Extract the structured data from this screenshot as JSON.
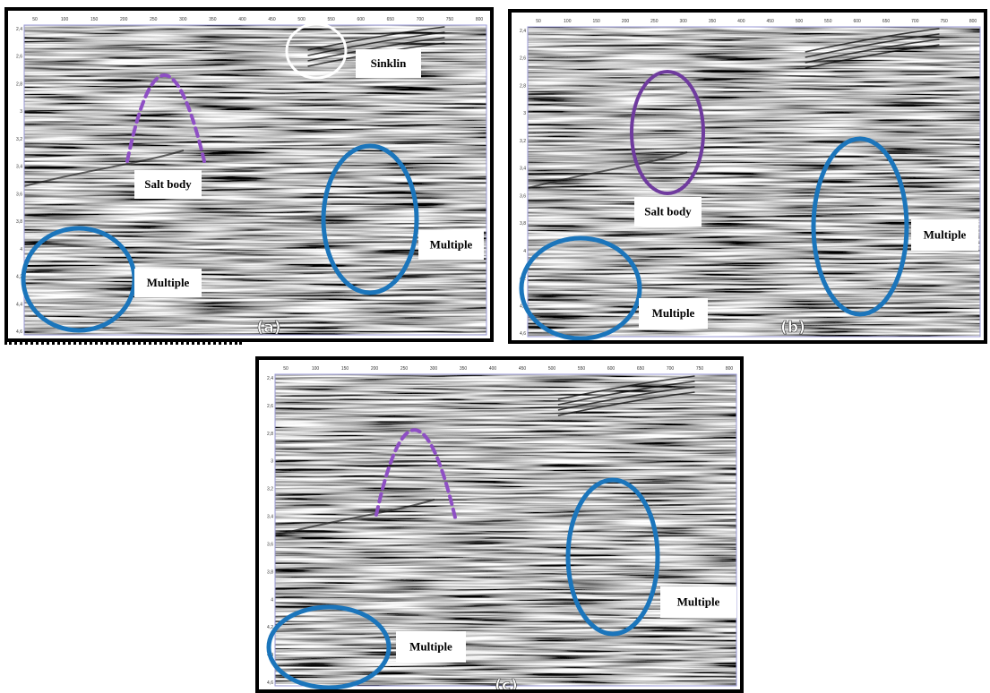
{
  "x_ticks": [
    50,
    100,
    150,
    200,
    250,
    300,
    350,
    400,
    450,
    500,
    550,
    600,
    650,
    700,
    750,
    800
  ],
  "y_ticks": [
    "2,4",
    "2,6",
    "2,8",
    "3",
    "3,2",
    "3,4",
    "3,6",
    "3,8",
    "4",
    "4,2",
    "4,4",
    "4,6"
  ],
  "panels": [
    {
      "label": "(a)",
      "annotations": [
        "Sinklin",
        "Salt body",
        "Multiple",
        "Multiple"
      ]
    },
    {
      "label": "(b)",
      "annotations": [
        "Salt body",
        "Multiple",
        "Multiple"
      ]
    },
    {
      "label": "(c)",
      "annotations": [
        "Multiple",
        "Multiple"
      ]
    }
  ]
}
